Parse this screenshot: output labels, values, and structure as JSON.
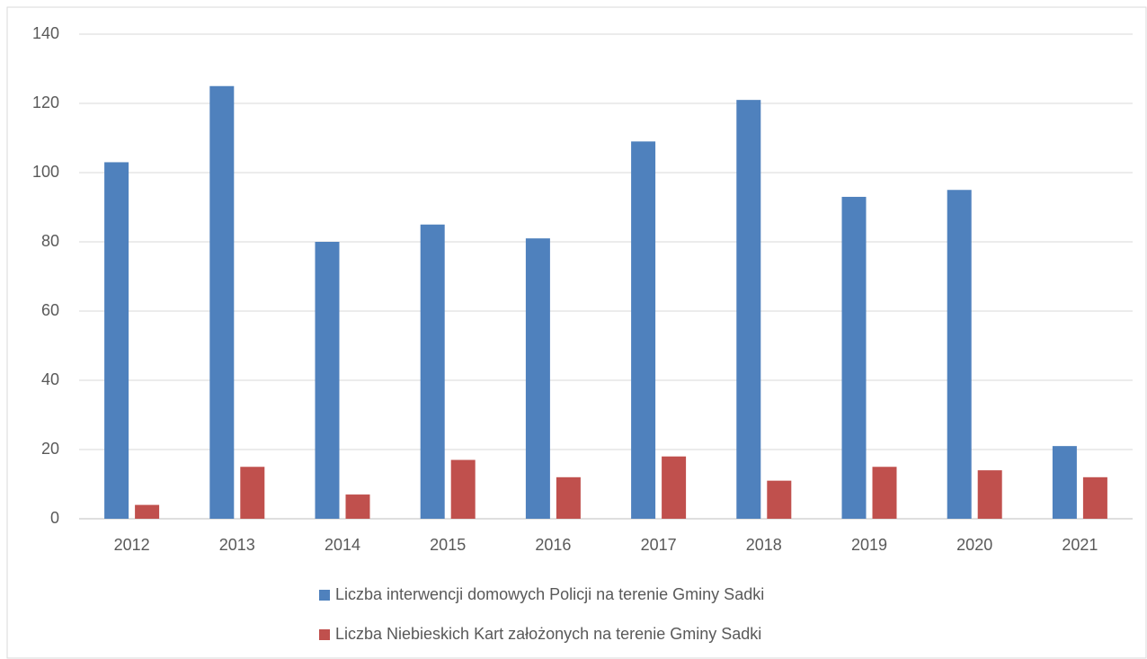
{
  "chart_data": {
    "type": "bar",
    "categories": [
      "2012",
      "2013",
      "2014",
      "2015",
      "2016",
      "2017",
      "2018",
      "2019",
      "2020",
      "2021"
    ],
    "series": [
      {
        "name": "Liczba interwencji domowych Policji na terenie Gminy Sadki",
        "color": "#4f81bd",
        "values": [
          103,
          125,
          80,
          85,
          81,
          109,
          121,
          93,
          95,
          21
        ]
      },
      {
        "name": "Liczba Niebieskich Kart założonych na terenie Gminy Sadki",
        "color": "#c0504d",
        "values": [
          4,
          15,
          7,
          17,
          12,
          18,
          11,
          15,
          14,
          12
        ]
      }
    ],
    "ylim": [
      0,
      140
    ],
    "yticks": [
      0,
      20,
      40,
      60,
      80,
      100,
      120,
      140
    ],
    "grid": true,
    "legend": "bottom"
  }
}
